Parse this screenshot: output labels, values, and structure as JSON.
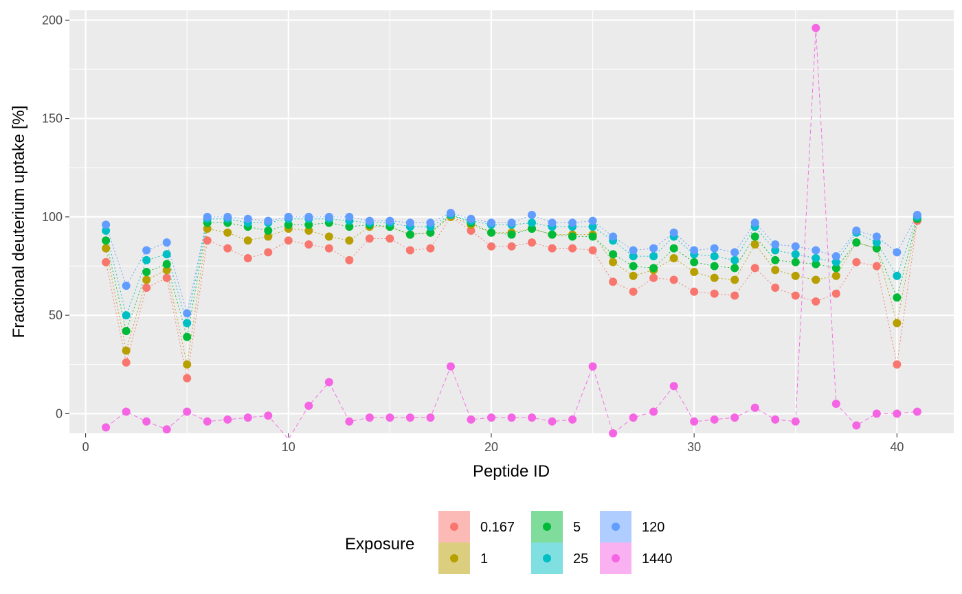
{
  "chart_data": {
    "type": "line",
    "title": "",
    "xlabel": "Peptide ID",
    "ylabel": "Fractional deuterium uptake [%]",
    "xlim": [
      -0.8,
      42.8
    ],
    "ylim": [
      -10,
      205
    ],
    "x_ticks": [
      0,
      10,
      20,
      30,
      40
    ],
    "y_ticks": [
      0,
      50,
      100,
      150,
      200
    ],
    "x_tick_labels": [
      "0",
      "10",
      "20",
      "30",
      "40"
    ],
    "y_tick_labels": [
      "0",
      "50",
      "100",
      "150",
      "200"
    ],
    "grid": true,
    "legend": {
      "title": "Exposure",
      "position": "bottom",
      "entries": [
        "0.167",
        "1",
        "5",
        "25",
        "120",
        "1440"
      ]
    },
    "x": [
      1,
      2,
      3,
      4,
      5,
      6,
      7,
      8,
      9,
      10,
      11,
      12,
      13,
      14,
      15,
      16,
      17,
      18,
      19,
      20,
      21,
      22,
      23,
      24,
      25,
      26,
      27,
      28,
      29,
      30,
      31,
      32,
      33,
      34,
      35,
      36,
      37,
      38,
      39,
      40,
      41
    ],
    "series": [
      {
        "name": "0.167",
        "color": "#F8766D",
        "values": [
          77,
          26,
          64,
          69,
          18,
          88,
          84,
          79,
          82,
          88,
          86,
          84,
          78,
          89,
          89,
          83,
          84,
          100,
          93,
          85,
          85,
          87,
          84,
          84,
          83,
          67,
          62,
          69,
          68,
          62,
          61,
          60,
          74,
          64,
          60,
          57,
          61,
          77,
          75,
          25,
          98
        ]
      },
      {
        "name": "1",
        "color": "#B79F00",
        "values": [
          84,
          32,
          68,
          73,
          25,
          94,
          92,
          88,
          90,
          94,
          93,
          90,
          88,
          95,
          95,
          91,
          92,
          100,
          96,
          92,
          92,
          94,
          91,
          91,
          91,
          77,
          70,
          73,
          79,
          72,
          69,
          68,
          86,
          73,
          70,
          68,
          70,
          87,
          84,
          46,
          99
        ]
      },
      {
        "name": "5",
        "color": "#00BA38",
        "values": [
          88,
          42,
          72,
          76,
          39,
          97,
          97,
          95,
          93,
          96,
          96,
          97,
          95,
          96,
          95,
          91,
          92,
          101,
          97,
          92,
          91,
          94,
          91,
          90,
          90,
          81,
          75,
          74,
          84,
          77,
          75,
          74,
          90,
          78,
          77,
          76,
          74,
          87,
          84,
          59,
          99
        ]
      },
      {
        "name": "25",
        "color": "#00BFC4",
        "values": [
          93,
          50,
          78,
          81,
          46,
          99,
          99,
          97,
          97,
          99,
          99,
          99,
          98,
          97,
          97,
          95,
          95,
          101,
          98,
          96,
          96,
          97,
          95,
          95,
          95,
          88,
          80,
          80,
          90,
          81,
          80,
          78,
          95,
          83,
          81,
          79,
          77,
          92,
          87,
          70,
          100
        ]
      },
      {
        "name": "120",
        "color": "#619CFF",
        "values": [
          96,
          65,
          83,
          87,
          51,
          100,
          100,
          99,
          98,
          100,
          100,
          100,
          100,
          98,
          98,
          97,
          97,
          102,
          99,
          97,
          97,
          101,
          97,
          97,
          98,
          90,
          83,
          84,
          92,
          83,
          84,
          82,
          97,
          86,
          85,
          83,
          80,
          93,
          90,
          82,
          101
        ]
      },
      {
        "name": "1440",
        "color": "#F564E3",
        "values": [
          -7,
          1,
          -4,
          -8,
          1,
          -4,
          -3,
          -2,
          -1,
          -13,
          4,
          16,
          -4,
          -2,
          -2,
          -2,
          -2,
          24,
          -3,
          -2,
          -2,
          -2,
          -4,
          -3,
          24,
          -10,
          -2,
          1,
          14,
          -4,
          -3,
          -2,
          3,
          -3,
          -4,
          196,
          5,
          -6,
          0,
          0,
          1
        ]
      }
    ]
  }
}
